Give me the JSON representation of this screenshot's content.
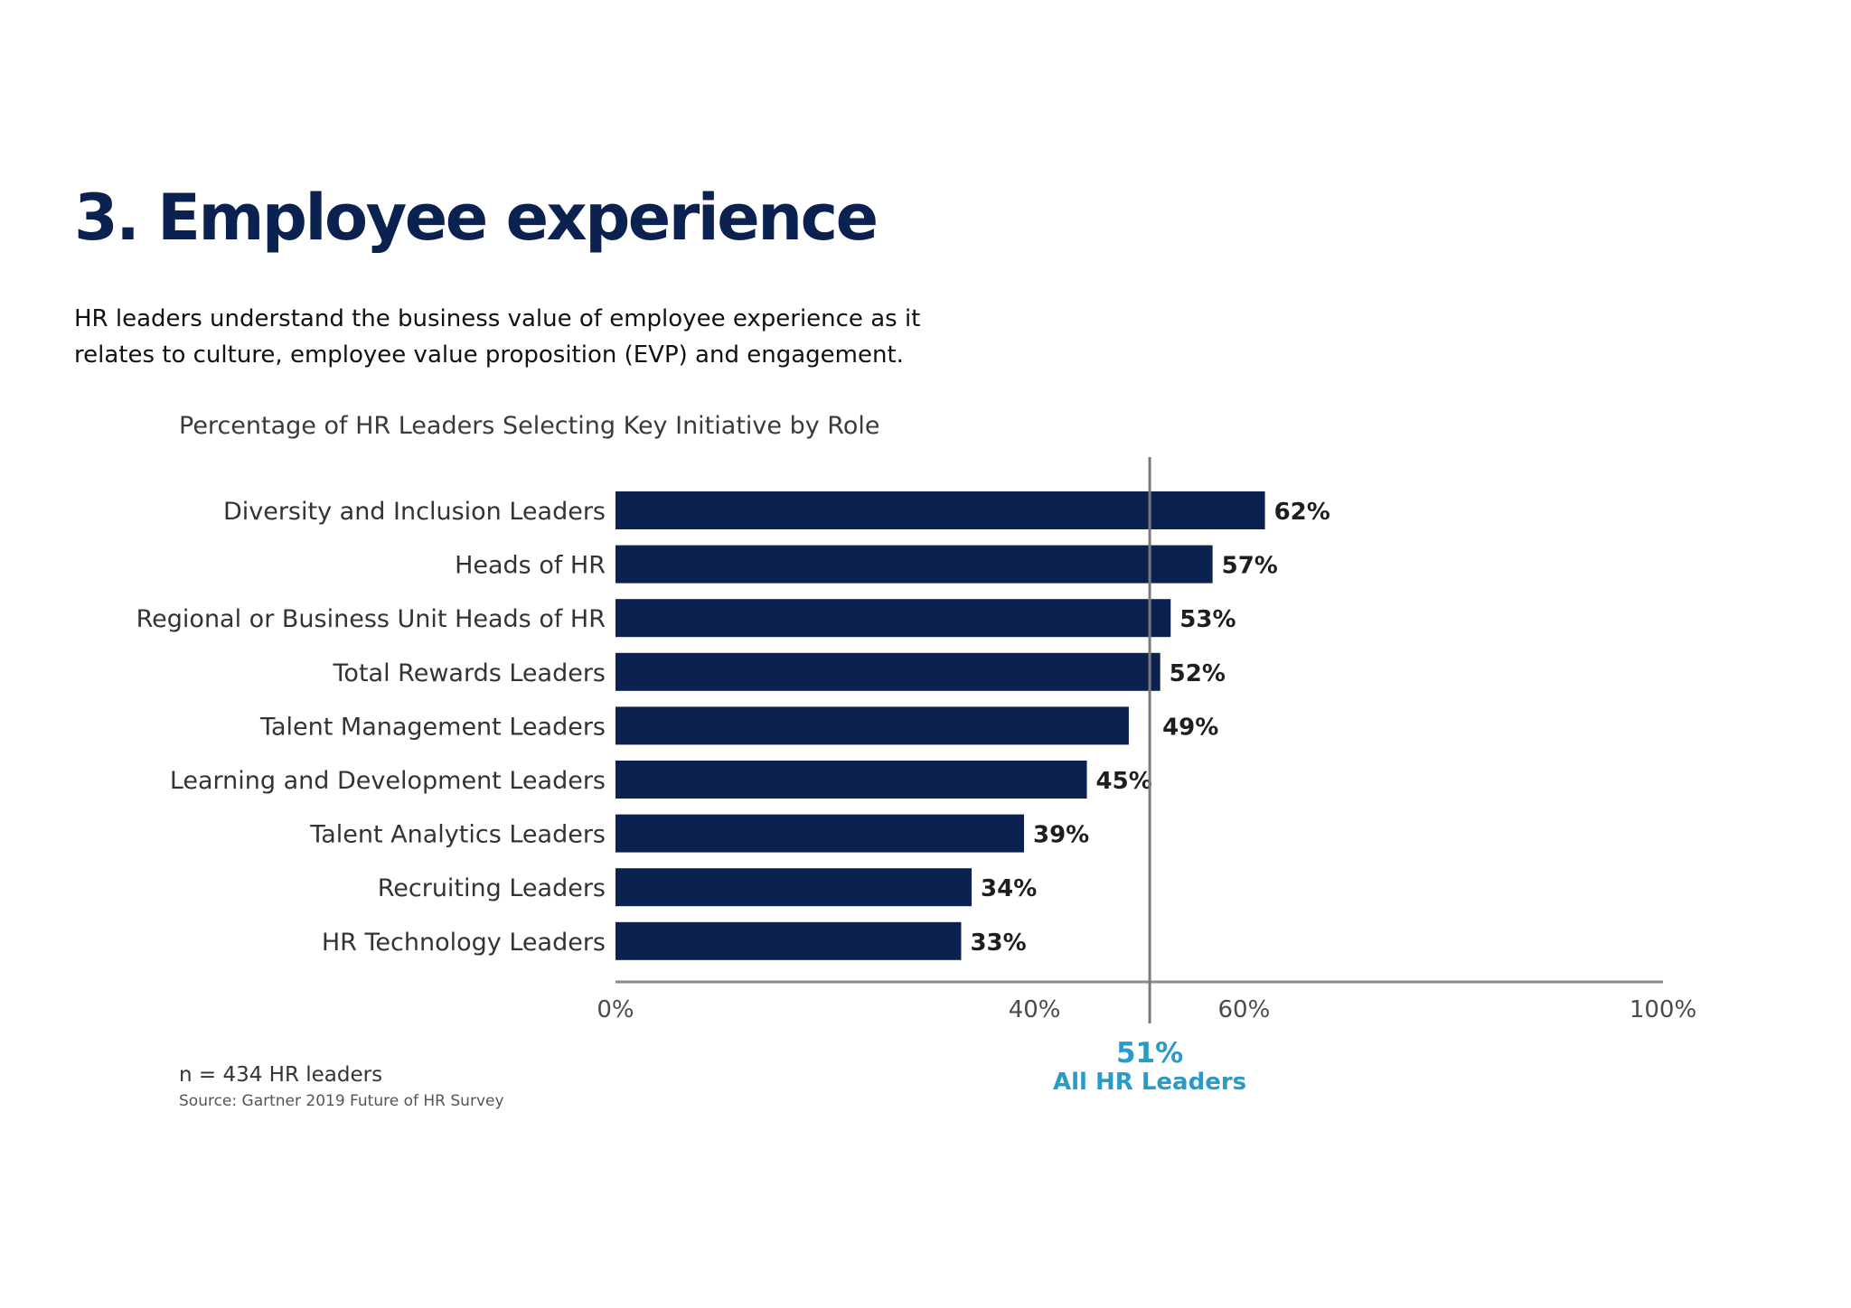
{
  "page": {
    "heading": "3. Employee experience",
    "intro_lines": [
      "HR leaders understand the business value of employee experience as it",
      "relates to culture, employee value proposition (EVP) and engagement."
    ]
  },
  "chart_data": {
    "type": "bar",
    "orientation": "horizontal",
    "title": "Percentage of HR Leaders Selecting Key Initiative by Role",
    "categories": [
      "Diversity and Inclusion Leaders",
      "Heads of HR",
      "Regional or Business Unit Heads of HR",
      "Total Rewards Leaders",
      "Talent Management Leaders",
      "Learning and Development Leaders",
      "Talent Analytics Leaders",
      "Recruiting Leaders",
      "HR Technology Leaders"
    ],
    "values": [
      62,
      57,
      53,
      52,
      49,
      45,
      39,
      34,
      33
    ],
    "value_labels": [
      "62%",
      "57%",
      "53%",
      "52%",
      "49%",
      "45%",
      "39%",
      "34%",
      "33%"
    ],
    "xlim": [
      0,
      100
    ],
    "x_ticks": [
      {
        "value": 0,
        "label": "0%"
      },
      {
        "value": 40,
        "label": "40%"
      },
      {
        "value": 60,
        "label": "60%"
      },
      {
        "value": 100,
        "label": "100%"
      }
    ],
    "reference_line": {
      "value": 51,
      "value_label": "51%",
      "label": "All HR Leaders",
      "color": "#2a9ac7"
    },
    "bar_color": "#0b2150",
    "grid": false,
    "legend": "none",
    "notes": {
      "sample": "n = 434 HR leaders",
      "source": "Source: Gartner 2019 Future of HR Survey"
    }
  }
}
